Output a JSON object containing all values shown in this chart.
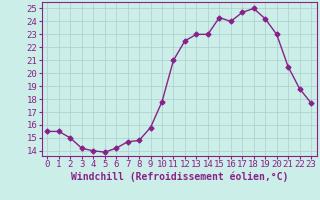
{
  "x": [
    0,
    1,
    2,
    3,
    4,
    5,
    6,
    7,
    8,
    9,
    10,
    11,
    12,
    13,
    14,
    15,
    16,
    17,
    18,
    19,
    20,
    21,
    22,
    23
  ],
  "y": [
    15.5,
    15.5,
    15.0,
    14.2,
    14.0,
    13.9,
    14.2,
    14.7,
    14.8,
    15.8,
    17.8,
    21.0,
    22.5,
    23.0,
    23.0,
    24.3,
    24.0,
    24.7,
    25.0,
    24.2,
    23.0,
    20.5,
    18.8,
    17.7
  ],
  "line_color": "#882288",
  "marker": "D",
  "marker_size": 2.5,
  "bg_color": "#cceee8",
  "grid_color": "#aacccc",
  "tick_color": "#882288",
  "label_color": "#882288",
  "xlabel": "Windchill (Refroidissement éolien,°C)",
  "ylabel_ticks": [
    14,
    15,
    16,
    17,
    18,
    19,
    20,
    21,
    22,
    23,
    24,
    25
  ],
  "xlim": [
    -0.5,
    23.5
  ],
  "ylim": [
    13.6,
    25.5
  ],
  "xticks": [
    0,
    1,
    2,
    3,
    4,
    5,
    6,
    7,
    8,
    9,
    10,
    11,
    12,
    13,
    14,
    15,
    16,
    17,
    18,
    19,
    20,
    21,
    22,
    23
  ],
  "xlabel_fontsize": 7.0,
  "tick_fontsize": 6.5
}
